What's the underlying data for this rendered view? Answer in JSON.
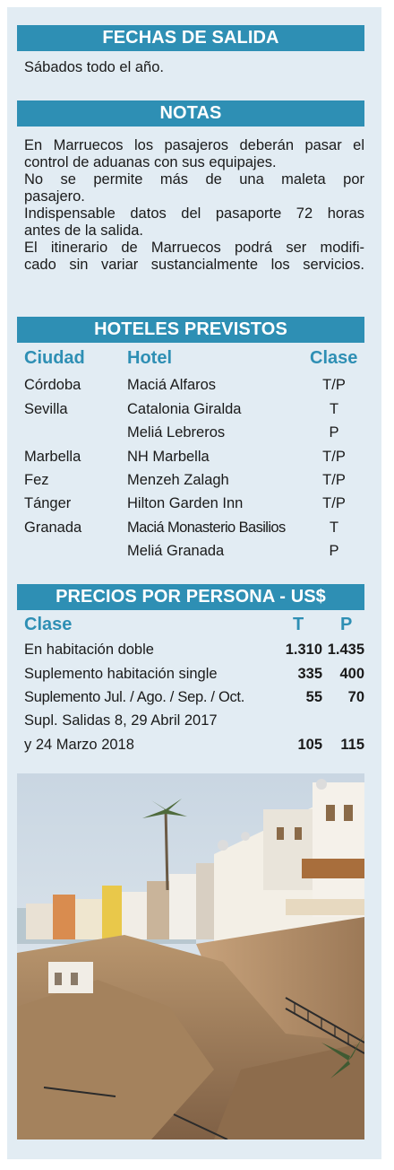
{
  "fechas": {
    "title": "FECHAS DE SALIDA",
    "text": "Sábados todo el año."
  },
  "notas": {
    "title": "NOTAS",
    "lines": [
      "En Marruecos los pasajeros deberán pasar el",
      "control de aduanas con sus equipajes.",
      "No se permite más de una maleta por",
      "pasajero.",
      "Indispensable datos del pasaporte 72 horas",
      "antes de la salida.",
      "El itinerario de Marruecos podrá ser modifi-",
      "cado sin variar sustancialmente los servicios."
    ]
  },
  "hoteles": {
    "title": "HOTELES PREVISTOS",
    "headers": {
      "ciudad": "Ciudad",
      "hotel": "Hotel",
      "clase": "Clase"
    },
    "rows": [
      {
        "ciudad": "Córdoba",
        "hotel": "Maciá Alfaros",
        "clase": "T/P"
      },
      {
        "ciudad": "Sevilla",
        "hotel": "Catalonia Giralda",
        "clase": "T"
      },
      {
        "ciudad": "",
        "hotel": "Meliá Lebreros",
        "clase": "P"
      },
      {
        "ciudad": "Marbella",
        "hotel": "NH Marbella",
        "clase": "T/P"
      },
      {
        "ciudad": "Fez",
        "hotel": "Menzeh Zalagh",
        "clase": "T/P"
      },
      {
        "ciudad": "Tánger",
        "hotel": "Hilton Garden Inn",
        "clase": "T/P"
      },
      {
        "ciudad": "Granada",
        "hotel": "Maciá Monasterio Basilios",
        "clase": "T"
      },
      {
        "ciudad": "",
        "hotel": "Meliá Granada",
        "clase": "P"
      }
    ]
  },
  "precios": {
    "title": "PRECIOS POR PERSONA - US$",
    "headers": {
      "clase": "Clase",
      "t": "T",
      "p": "P"
    },
    "rows": [
      {
        "label": "En habitación doble",
        "t": "1.310",
        "p": "1.435"
      },
      {
        "label": "Suplemento habitación single",
        "t": "335",
        "p": "400"
      },
      {
        "label": "Suplemento Jul. / Ago. / Sep. / Oct.",
        "t": "55",
        "p": "70"
      },
      {
        "label": "Supl. Salidas 8, 29 Abril 2017",
        "t": "",
        "p": ""
      },
      {
        "label": "y 24 Marzo 2018",
        "t": "105",
        "p": "115"
      }
    ]
  },
  "colors": {
    "accent": "#2e8fb4",
    "panel": "#e2ecf3"
  },
  "photo": {
    "subject": "coastal-medina-photo"
  }
}
